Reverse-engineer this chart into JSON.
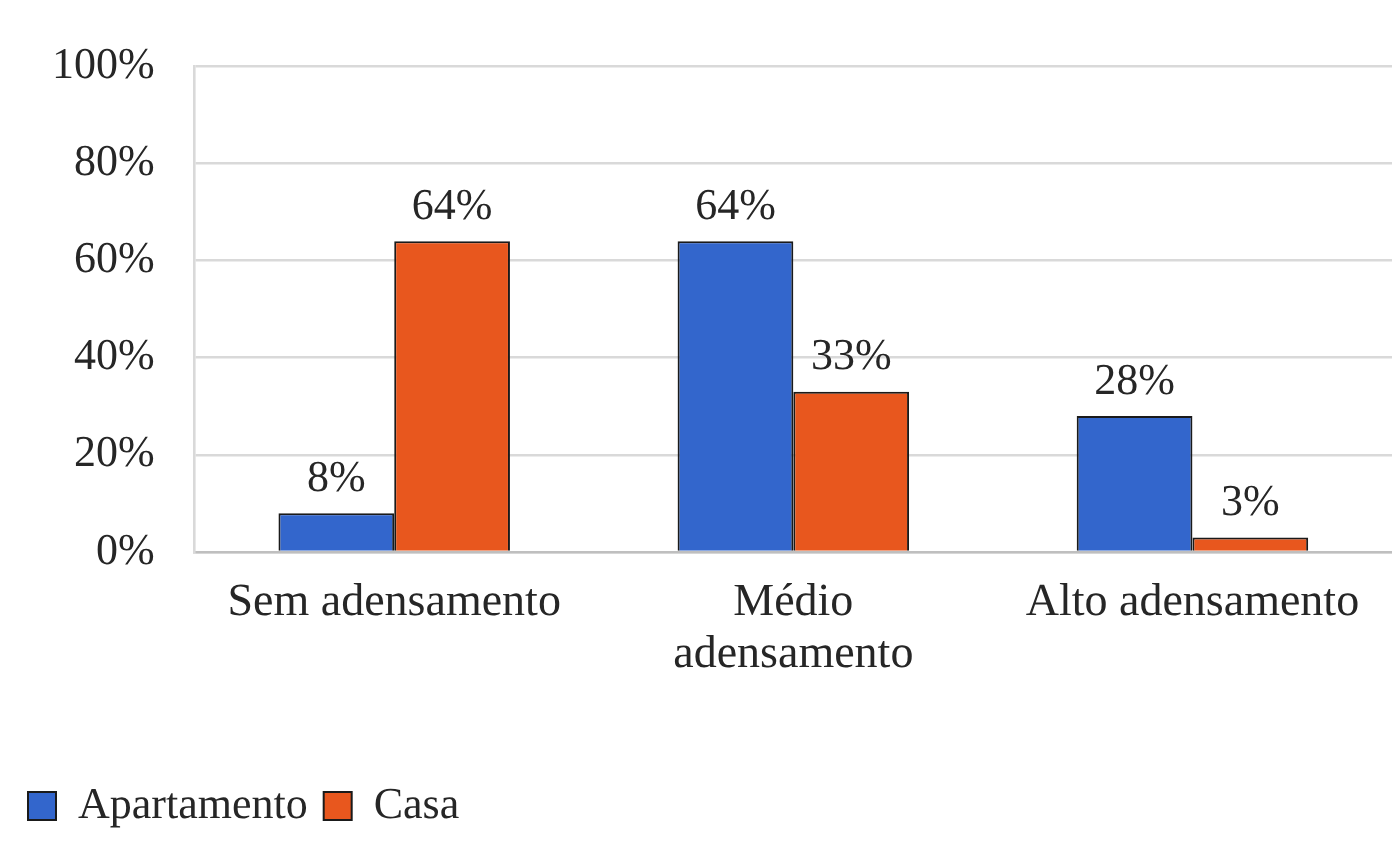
{
  "chart_data": {
    "type": "bar",
    "categories": [
      "Sem adensamento",
      "Médio adensamento",
      "Alto adensamento"
    ],
    "series": [
      {
        "name": "Apartamento",
        "color": "#3366cc",
        "values": [
          8,
          64,
          28
        ],
        "value_labels": [
          "8%",
          "64%",
          "28%"
        ]
      },
      {
        "name": "Casa",
        "color": "#e8571e",
        "values": [
          64,
          33,
          3
        ],
        "value_labels": [
          "64%",
          "33%",
          "3%"
        ]
      }
    ],
    "ylim": [
      0,
      100
    ],
    "yticks": [
      {
        "value": 0,
        "label": "0%"
      },
      {
        "value": 20,
        "label": "20%"
      },
      {
        "value": 40,
        "label": "40%"
      },
      {
        "value": 60,
        "label": "60%"
      },
      {
        "value": 80,
        "label": "80%"
      },
      {
        "value": 100,
        "label": "100%"
      }
    ],
    "grid": "y",
    "legend": "bottom left"
  }
}
